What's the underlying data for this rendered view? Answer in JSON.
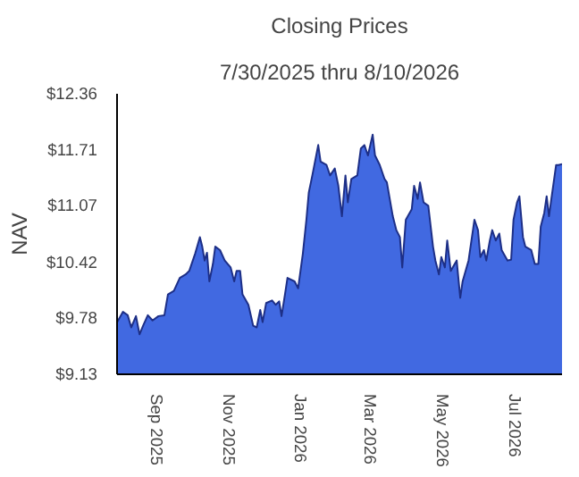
{
  "chart_data": {
    "type": "area",
    "title": "Closing Prices",
    "subtitle": "7/30/2025 thru 8/10/2026",
    "ylabel": "NAV",
    "xlim": [
      "2025-07-30",
      "2026-08-10"
    ],
    "xticks": [
      {
        "value": "2025-09-01",
        "label": "Sep  2025"
      },
      {
        "value": "2025-11-01",
        "label": "Nov  2025"
      },
      {
        "value": "2026-01-01",
        "label": "Jan  2026"
      },
      {
        "value": "2026-03-01",
        "label": "Mar  2026"
      },
      {
        "value": "2026-05-01",
        "label": "May  2026"
      },
      {
        "value": "2026-07-01",
        "label": "Jul  2026"
      }
    ],
    "ylim": [
      9.13,
      12.36
    ],
    "yticks": [
      {
        "value": 9.13,
        "label": "$9.13"
      },
      {
        "value": 9.78,
        "label": "$9.78"
      },
      {
        "value": 10.42,
        "label": "$10.42"
      },
      {
        "value": 11.07,
        "label": "$11.07"
      },
      {
        "value": 11.71,
        "label": "$11.71"
      },
      {
        "value": 12.36,
        "label": "$12.36"
      }
    ],
    "grid": false,
    "x": [
      "2025-07-30",
      "2025-08-04",
      "2025-08-08",
      "2025-08-11",
      "2025-08-15",
      "2025-08-18",
      "2025-08-21",
      "2025-08-25",
      "2025-08-29",
      "2025-09-03",
      "2025-09-08",
      "2025-09-11",
      "2025-09-16",
      "2025-09-21",
      "2025-09-26",
      "2025-09-29",
      "2025-10-04",
      "2025-10-08",
      "2025-10-10",
      "2025-10-12",
      "2025-10-14",
      "2025-10-16",
      "2025-10-19",
      "2025-10-21",
      "2025-10-25",
      "2025-10-29",
      "2025-11-03",
      "2025-11-06",
      "2025-11-08",
      "2025-11-11",
      "2025-11-13",
      "2025-11-18",
      "2025-11-22",
      "2025-11-25",
      "2025-11-28",
      "2025-11-30",
      "2025-12-03",
      "2025-12-08",
      "2025-12-11",
      "2025-12-14",
      "2025-12-16",
      "2025-12-19",
      "2025-12-21",
      "2025-12-27",
      "2025-12-30",
      "2026-01-03",
      "2026-01-06",
      "2026-01-08",
      "2026-01-11",
      "2026-01-16",
      "2026-01-18",
      "2026-01-23",
      "2026-01-26",
      "2026-01-30",
      "2026-02-02",
      "2026-02-05",
      "2026-02-08",
      "2026-02-10",
      "2026-02-13",
      "2026-02-18",
      "2026-02-21",
      "2026-02-24",
      "2026-02-27",
      "2026-03-03",
      "2026-03-05",
      "2026-03-09",
      "2026-03-13",
      "2026-03-15",
      "2026-03-20",
      "2026-03-23",
      "2026-03-26",
      "2026-03-28",
      "2026-03-31",
      "2026-04-05",
      "2026-04-07",
      "2026-04-10",
      "2026-04-12",
      "2026-04-15",
      "2026-04-19",
      "2026-04-23",
      "2026-04-25",
      "2026-04-28",
      "2026-04-30",
      "2026-05-03",
      "2026-05-05",
      "2026-05-08",
      "2026-05-13",
      "2026-05-16",
      "2026-05-18",
      "2026-05-23",
      "2026-05-28",
      "2026-05-31",
      "2026-06-02",
      "2026-06-05",
      "2026-06-07",
      "2026-06-10",
      "2026-06-12",
      "2026-06-15",
      "2026-06-18",
      "2026-06-20",
      "2026-06-25",
      "2026-06-28",
      "2026-06-30",
      "2026-07-03",
      "2026-07-05",
      "2026-07-08",
      "2026-07-10",
      "2026-07-15",
      "2026-07-18",
      "2026-07-21",
      "2026-07-23",
      "2026-07-26",
      "2026-07-28",
      "2026-07-30",
      "2026-08-01",
      "2026-08-05",
      "2026-08-07",
      "2026-08-10"
    ],
    "series": [
      {
        "color": "#4169e1",
        "values": [
          9.73,
          9.85,
          9.81,
          9.67,
          9.8,
          9.59,
          9.69,
          9.81,
          9.75,
          9.8,
          9.81,
          10.05,
          10.09,
          10.24,
          10.28,
          10.32,
          10.52,
          10.71,
          10.6,
          10.44,
          10.53,
          10.2,
          10.4,
          10.6,
          10.56,
          10.44,
          10.36,
          10.2,
          10.32,
          10.32,
          10.05,
          9.93,
          9.69,
          9.67,
          9.87,
          9.73,
          9.95,
          9.98,
          9.93,
          9.97,
          9.8,
          10.06,
          10.24,
          10.2,
          10.12,
          10.52,
          10.91,
          11.22,
          11.42,
          11.77,
          11.58,
          11.54,
          11.42,
          11.5,
          11.3,
          10.95,
          11.42,
          11.11,
          11.38,
          11.42,
          11.73,
          11.77,
          11.65,
          11.89,
          11.65,
          11.54,
          11.38,
          11.34,
          10.95,
          10.79,
          10.71,
          10.36,
          10.91,
          11.03,
          11.3,
          11.15,
          11.34,
          11.11,
          11.07,
          10.6,
          10.44,
          10.28,
          10.48,
          10.36,
          10.67,
          10.32,
          10.44,
          10.01,
          10.2,
          10.44,
          10.91,
          10.79,
          10.48,
          10.56,
          10.44,
          10.67,
          10.79,
          10.67,
          10.75,
          10.56,
          10.44,
          10.45,
          10.91,
          11.11,
          11.18,
          10.71,
          10.6,
          10.56,
          10.4,
          10.4,
          10.83,
          10.99,
          11.18,
          10.95,
          11.15,
          11.54,
          11.54,
          11.55
        ]
      }
    ]
  }
}
